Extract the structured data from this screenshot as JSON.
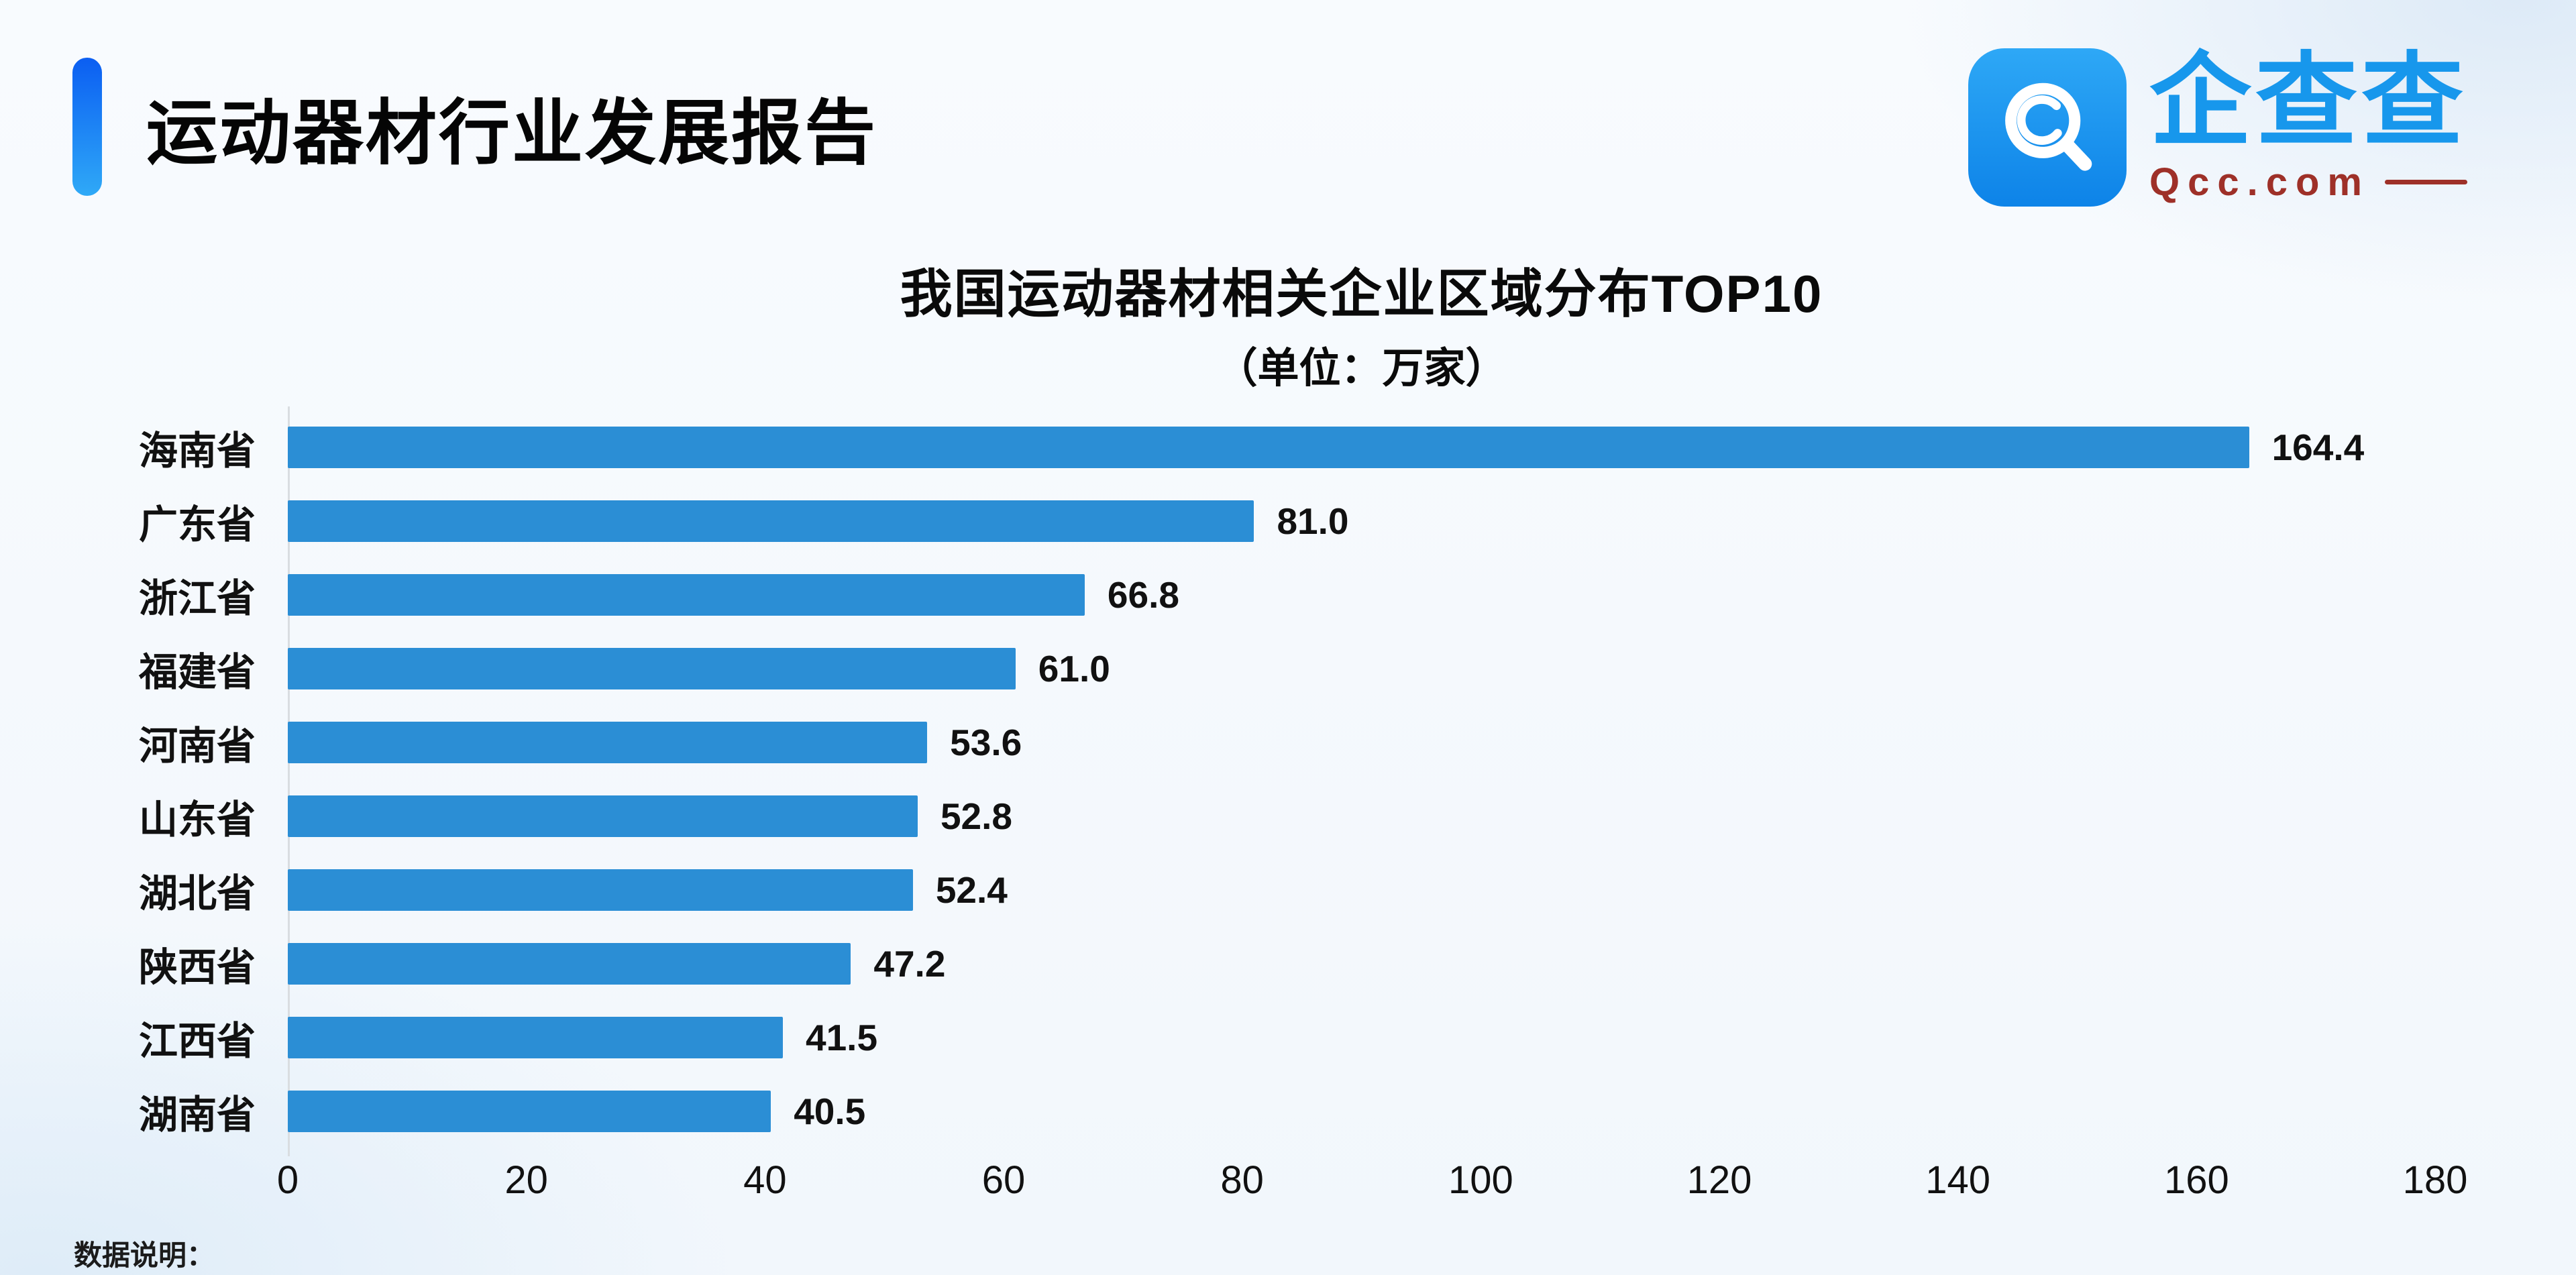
{
  "header": {
    "title": "运动器材行业发展报告"
  },
  "logo": {
    "name": "企查查",
    "domain": "Qcc.com"
  },
  "chart_data": {
    "type": "bar",
    "orientation": "horizontal",
    "title": "我国运动器材相关企业区域分布TOP10",
    "subtitle": "（单位：万家）",
    "categories": [
      "海南省",
      "广东省",
      "浙江省",
      "福建省",
      "河南省",
      "山东省",
      "湖北省",
      "陕西省",
      "江西省",
      "湖南省"
    ],
    "values": [
      164.4,
      81.0,
      66.8,
      61.0,
      53.6,
      52.8,
      52.4,
      47.2,
      41.5,
      40.5
    ],
    "xlim": [
      0,
      180
    ],
    "xticks": [
      0,
      20,
      40,
      60,
      80,
      100,
      120,
      140,
      160,
      180
    ],
    "bar_color": "#2b8ed5",
    "grid": false,
    "legend": "none"
  },
  "footer": {
    "note": "数据说明："
  }
}
